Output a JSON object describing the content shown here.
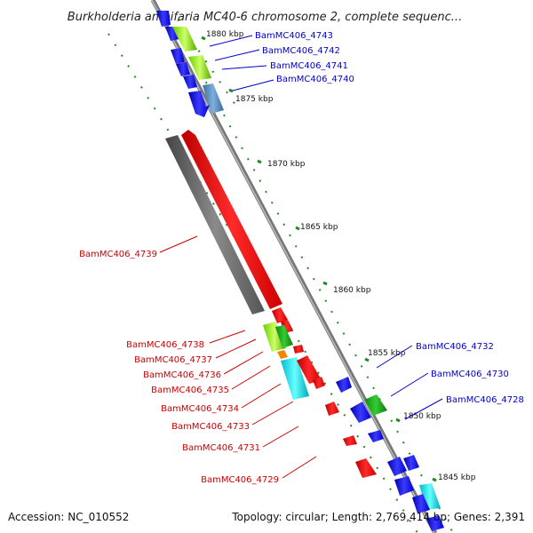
{
  "title": "Burkholderia ambifaria MC40-6 chromosome 2, complete sequenc...",
  "footer": {
    "accession": "Accession: NC_010552",
    "summary": "Topology: circular; Length: 2,769,414 bp; Genes: 2,391"
  },
  "colors": {
    "forward": "#ee0000",
    "reverse": "#1010dd",
    "backbone": "#888888",
    "tick": "#228B22",
    "label_forward": "#cc0000",
    "label_reverse": "#0000cc"
  },
  "scale_ticks": [
    "1880 kbp",
    "1875 kbp",
    "1870 kbp",
    "1865 kbp",
    "1860 kbp",
    "1855 kbp",
    "1850 kbp",
    "1845 kbp"
  ],
  "gene_labels_reverse": [
    "BamMC406_4743",
    "BamMC406_4742",
    "BamMC406_4741",
    "BamMC406_4740",
    "BamMC406_4732",
    "BamMC406_4730",
    "BamMC406_4728"
  ],
  "gene_labels_forward": [
    "BamMC406_4739",
    "BamMC406_4738",
    "BamMC406_4737",
    "BamMC406_4736",
    "BamMC406_4735",
    "BamMC406_4734",
    "BamMC406_4733",
    "BamMC406_4731",
    "BamMC406_4729"
  ]
}
